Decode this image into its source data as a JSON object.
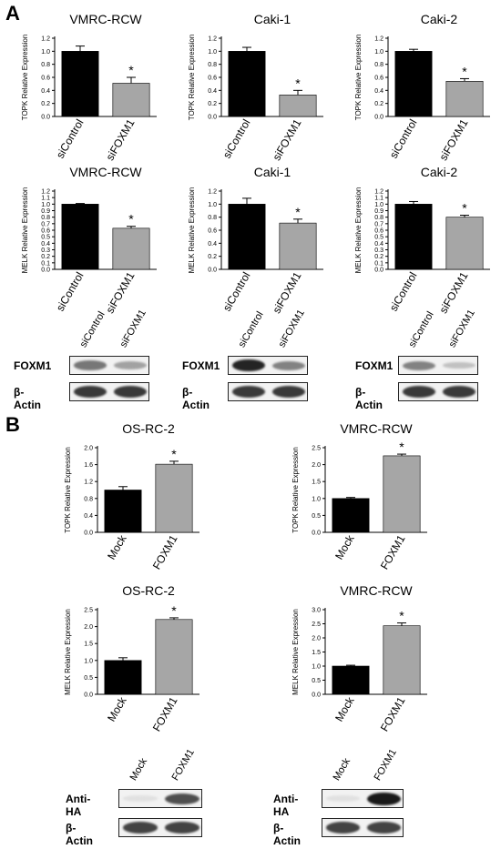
{
  "panels": {
    "a": "A",
    "b": "B"
  },
  "colors": {
    "control": "#000000",
    "treatment": "#a6a6a6"
  },
  "chart_data": [
    {
      "id": "a-topk-vmrc",
      "type": "bar",
      "title": "VMRC-RCW",
      "ylabel": "TOPK Relative Expression",
      "categories": [
        "siControl",
        "siFOXM1"
      ],
      "values": [
        1.0,
        0.51
      ],
      "errors": [
        0.08,
        0.09
      ],
      "ylim": [
        0,
        1.2
      ],
      "yticks": [
        0.0,
        0.2,
        0.4,
        0.6,
        0.8,
        1.0,
        1.2
      ],
      "tick_decimals": 1,
      "annotations": [
        "",
        "*"
      ]
    },
    {
      "id": "a-topk-caki1",
      "type": "bar",
      "title": "Caki-1",
      "ylabel": "TOPK Relative Expression",
      "categories": [
        "siControl",
        "siFOXM1"
      ],
      "values": [
        1.0,
        0.33
      ],
      "errors": [
        0.06,
        0.07
      ],
      "ylim": [
        0,
        1.2
      ],
      "yticks": [
        0.0,
        0.2,
        0.4,
        0.6,
        0.8,
        1.0,
        1.2
      ],
      "tick_decimals": 1,
      "annotations": [
        "",
        "*"
      ]
    },
    {
      "id": "a-topk-caki2",
      "type": "bar",
      "title": "Caki-2",
      "ylabel": "TOPK Relative Expression",
      "categories": [
        "siControl",
        "siFOXM1"
      ],
      "values": [
        1.0,
        0.54
      ],
      "errors": [
        0.03,
        0.04
      ],
      "ylim": [
        0,
        1.2
      ],
      "yticks": [
        0.0,
        0.2,
        0.4,
        0.6,
        0.8,
        1.0,
        1.2
      ],
      "tick_decimals": 1,
      "annotations": [
        "",
        "*"
      ]
    },
    {
      "id": "a-melk-vmrc",
      "type": "bar",
      "title": "VMRC-RCW",
      "ylabel": "MELK Relative Expression",
      "categories": [
        "siControl",
        "siFOXM1"
      ],
      "values": [
        1.0,
        0.63
      ],
      "errors": [
        0.01,
        0.03
      ],
      "ylim": [
        0,
        1.2
      ],
      "yticks": [
        0.0,
        0.1,
        0.2,
        0.3,
        0.4,
        0.5,
        0.6,
        0.7,
        0.8,
        0.9,
        1.0,
        1.1,
        1.2
      ],
      "tick_decimals": 1,
      "annotations": [
        "",
        "*"
      ]
    },
    {
      "id": "a-melk-caki1",
      "type": "bar",
      "title": "Caki-1",
      "ylabel": "MELK Relative Expression",
      "categories": [
        "siControl",
        "siFOXM1"
      ],
      "values": [
        1.0,
        0.71
      ],
      "errors": [
        0.09,
        0.06
      ],
      "ylim": [
        0,
        1.2
      ],
      "yticks": [
        0.0,
        0.2,
        0.4,
        0.6,
        0.8,
        1.0,
        1.2
      ],
      "tick_decimals": 1,
      "annotations": [
        "",
        "*"
      ]
    },
    {
      "id": "a-melk-caki2",
      "type": "bar",
      "title": "Caki-2",
      "ylabel": "MELK Relative Expression",
      "categories": [
        "siControl",
        "siFOXM1"
      ],
      "values": [
        1.0,
        0.8
      ],
      "errors": [
        0.04,
        0.03
      ],
      "ylim": [
        0,
        1.2
      ],
      "yticks": [
        0.0,
        0.1,
        0.2,
        0.3,
        0.4,
        0.5,
        0.6,
        0.7,
        0.8,
        0.9,
        1.0,
        1.1,
        1.2
      ],
      "tick_decimals": 1,
      "annotations": [
        "",
        "*"
      ]
    },
    {
      "id": "b-topk-osrc2",
      "type": "bar",
      "title": "OS-RC-2",
      "ylabel": "TOPK Relative Expression",
      "categories": [
        "Mock",
        "FOXM1"
      ],
      "values": [
        1.0,
        1.61
      ],
      "errors": [
        0.08,
        0.07
      ],
      "ylim": [
        0,
        2.0
      ],
      "yticks": [
        0.0,
        0.4,
        0.8,
        1.2,
        1.6,
        2.0
      ],
      "tick_decimals": 1,
      "annotations": [
        "",
        "*"
      ]
    },
    {
      "id": "b-topk-vmrc",
      "type": "bar",
      "title": "VMRC-RCW",
      "ylabel": "TOPK Relative Expression",
      "categories": [
        "Mock",
        "FOXM1"
      ],
      "values": [
        1.0,
        2.26
      ],
      "errors": [
        0.03,
        0.05
      ],
      "ylim": [
        0,
        2.5
      ],
      "yticks": [
        0.0,
        0.5,
        1.0,
        1.5,
        2.0,
        2.5
      ],
      "tick_decimals": 1,
      "annotations": [
        "",
        "*"
      ]
    },
    {
      "id": "b-melk-osrc2",
      "type": "bar",
      "title": "OS-RC-2",
      "ylabel": "MELK Relative Expression",
      "categories": [
        "Mock",
        "FOXM1"
      ],
      "values": [
        1.0,
        2.21
      ],
      "errors": [
        0.08,
        0.05
      ],
      "ylim": [
        0,
        2.5
      ],
      "yticks": [
        0.0,
        0.5,
        1.0,
        1.5,
        2.0,
        2.5
      ],
      "tick_decimals": 1,
      "annotations": [
        "",
        "*"
      ]
    },
    {
      "id": "b-melk-vmrc",
      "type": "bar",
      "title": "VMRC-RCW",
      "ylabel": "MELK Relative Expression",
      "categories": [
        "Mock",
        "FOXM1"
      ],
      "values": [
        1.0,
        2.43
      ],
      "errors": [
        0.03,
        0.1
      ],
      "ylim": [
        0,
        3.0
      ],
      "yticks": [
        0.0,
        0.5,
        1.0,
        1.5,
        2.0,
        2.5,
        3.0
      ],
      "tick_decimals": 1,
      "annotations": [
        "",
        "*"
      ]
    }
  ],
  "blots": [
    {
      "id": "blot-a-vmrc",
      "lanes": [
        "siControl",
        "siFOXM1"
      ],
      "rows": [
        {
          "label": "FOXM1",
          "intensity": [
            0.55,
            0.35
          ]
        },
        {
          "label": "β-Actin",
          "intensity": [
            0.85,
            0.85
          ]
        }
      ]
    },
    {
      "id": "blot-a-caki1",
      "lanes": [
        "siControl",
        "siFOXM1"
      ],
      "rows": [
        {
          "label": "FOXM1",
          "intensity": [
            0.95,
            0.5
          ]
        },
        {
          "label": "β-Actin",
          "intensity": [
            0.85,
            0.85
          ]
        }
      ]
    },
    {
      "id": "blot-a-caki2",
      "lanes": [
        "siControl",
        "siFOXM1"
      ],
      "rows": [
        {
          "label": "FOXM1",
          "intensity": [
            0.5,
            0.2
          ]
        },
        {
          "label": "β-Actin",
          "intensity": [
            0.85,
            0.85
          ]
        }
      ]
    },
    {
      "id": "blot-b-osrc2",
      "lanes": [
        "Mock",
        "FOXM1"
      ],
      "rows": [
        {
          "label": "Anti-HA",
          "intensity": [
            0.05,
            0.75
          ]
        },
        {
          "label": "β-Actin",
          "intensity": [
            0.8,
            0.8
          ]
        }
      ]
    },
    {
      "id": "blot-b-vmrc",
      "lanes": [
        "Mock",
        "FOXM1"
      ],
      "rows": [
        {
          "label": "Anti-HA",
          "intensity": [
            0.05,
            1.0
          ]
        },
        {
          "label": "β-Actin",
          "intensity": [
            0.8,
            0.8
          ]
        }
      ]
    }
  ]
}
